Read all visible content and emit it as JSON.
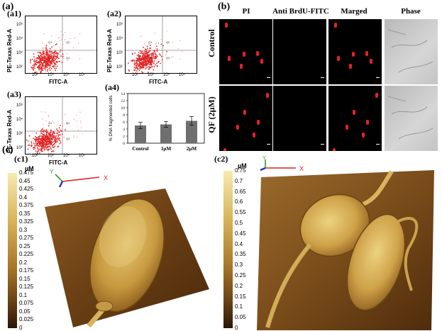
{
  "panel_labels": {
    "a": "(a)",
    "b": "(b)",
    "c": "(c)"
  },
  "facs": {
    "subpanels": [
      "(a1)",
      "(a2)",
      "(a3)"
    ],
    "ylabel": "PE-Texas Red-A",
    "xlabel": "FITC-A",
    "xticks": [
      "10²",
      "10³",
      "10⁴",
      "10⁵"
    ],
    "yticks": [
      "10²",
      "10³",
      "10⁴",
      "10⁵"
    ],
    "quadrants": [
      "Q1",
      "Q2",
      "Q3",
      "Q4"
    ]
  },
  "bar_sublabel": "(a4)",
  "chart_data": {
    "type": "bar",
    "categories": [
      "Control",
      "1µM",
      "2µM"
    ],
    "values": [
      5.0,
      5.3,
      6.3
    ],
    "errors": [
      0.9,
      0.8,
      1.2
    ],
    "ylabel": "% DNA fragmented cells",
    "yticks": [
      "0",
      "2",
      "4",
      "6",
      "8",
      "10",
      "12",
      "14"
    ],
    "ylim": [
      0,
      14
    ],
    "bar_color": "#6f6f6f"
  },
  "microscopy": {
    "columns": [
      "PI",
      "Anti BrdU-FITC",
      "Marged",
      "Phase"
    ],
    "rows": [
      "Control",
      "QF (2µM)"
    ]
  },
  "afm": {
    "c1": {
      "label": "(c1)",
      "unit": "µM",
      "ticks": [
        "0.475",
        "0.45",
        "0.425",
        "0.4",
        "0.375",
        "0.35",
        "0.325",
        "0.3",
        "0.275",
        "0.25",
        "0.225",
        "0.2",
        "0.175",
        "0.15",
        "0.125",
        "0.1",
        "0.075",
        "0.05",
        "0.025",
        "0"
      ]
    },
    "c2": {
      "label": "(c2)",
      "unit": "µM",
      "ticks": [
        "0.75",
        "0.7",
        "0.65",
        "0.6",
        "0.55",
        "0.5",
        "0.45",
        "0.4",
        "0.35",
        "0.3",
        "0.25",
        "0.2",
        "0.15",
        "0.1",
        "0.05",
        "0"
      ]
    },
    "axis_x": "X",
    "axis_y": "Y"
  }
}
